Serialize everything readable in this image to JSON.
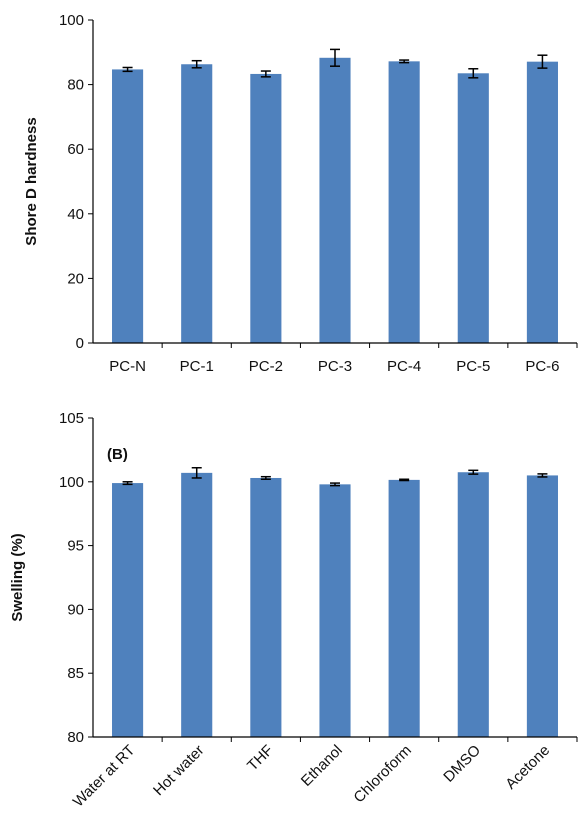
{
  "chart_data": [
    {
      "type": "bar",
      "panel_label": "",
      "ylabel": "Shore D hardness",
      "xlabel": "",
      "ylim": [
        0,
        100
      ],
      "yticks": [
        0,
        20,
        40,
        60,
        80,
        100
      ],
      "categories": [
        "PC-N",
        "PC-1",
        "PC-2",
        "PC-3",
        "PC-4",
        "PC-5",
        "PC-6"
      ],
      "values": [
        84.7,
        86.3,
        83.3,
        88.3,
        87.2,
        83.5,
        87.1
      ],
      "errors": [
        0.6,
        1.1,
        0.9,
        2.6,
        0.4,
        1.4,
        2.0
      ],
      "bar_color": "#4f81bd",
      "grid": false,
      "label_rotation": 0
    },
    {
      "type": "bar",
      "panel_label": "(B)",
      "ylabel": "Swelling (%)",
      "xlabel": "",
      "ylim": [
        80,
        105
      ],
      "yticks": [
        80,
        85,
        90,
        95,
        100,
        105
      ],
      "categories": [
        "Water at RT",
        "Hot water",
        "THF",
        "Ethanol",
        "Chloroform",
        "DMSO",
        "Acetone"
      ],
      "values": [
        99.9,
        100.7,
        100.3,
        99.8,
        100.15,
        100.75,
        100.5
      ],
      "errors": [
        0.1,
        0.4,
        0.1,
        0.1,
        0.05,
        0.15,
        0.12
      ],
      "bar_color": "#4f81bd",
      "grid": false,
      "label_rotation": -45
    }
  ]
}
